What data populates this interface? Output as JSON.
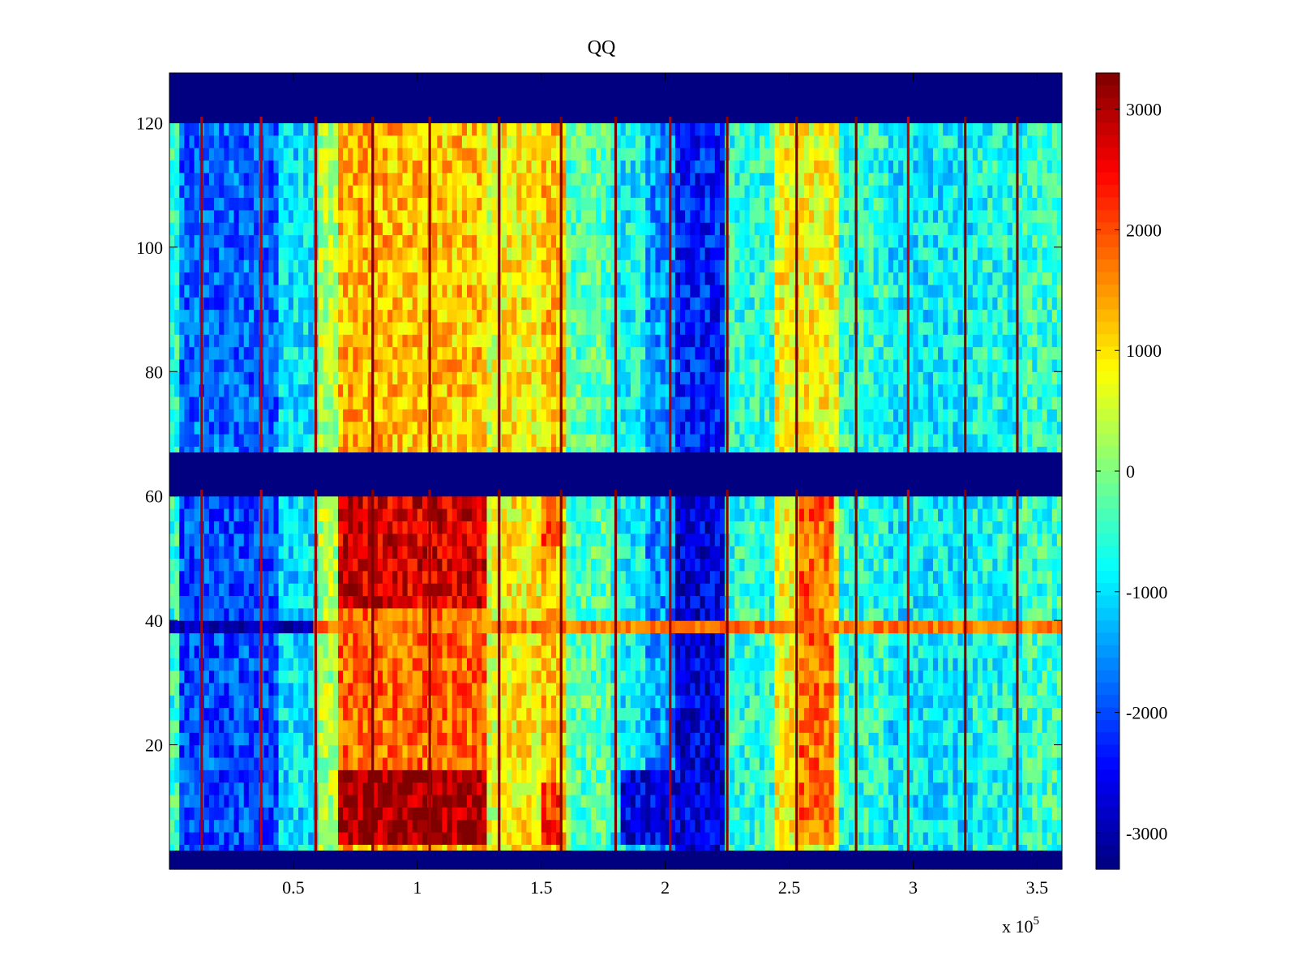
{
  "chart_data": {
    "type": "heatmap",
    "title": "QQ",
    "xlabel": "",
    "ylabel": "",
    "colormap": "jet",
    "xlim": [
      0,
      360000
    ],
    "ylim": [
      0,
      128
    ],
    "x_scale_label": "x 10",
    "x_scale_exponent": "5",
    "x_ticks": [
      {
        "value": 50000,
        "label": "0.5"
      },
      {
        "value": 100000,
        "label": "1"
      },
      {
        "value": 150000,
        "label": "1.5"
      },
      {
        "value": 200000,
        "label": "2"
      },
      {
        "value": 250000,
        "label": "2.5"
      },
      {
        "value": 300000,
        "label": "3"
      },
      {
        "value": 350000,
        "label": "3.5"
      }
    ],
    "y_ticks": [
      {
        "value": 20,
        "label": "20"
      },
      {
        "value": 40,
        "label": "40"
      },
      {
        "value": 60,
        "label": "60"
      },
      {
        "value": 80,
        "label": "80"
      },
      {
        "value": 100,
        "label": "100"
      },
      {
        "value": 120,
        "label": "120"
      }
    ],
    "colorbar": {
      "range": [
        -3300,
        3300
      ],
      "ticks": [
        {
          "value": 3000,
          "label": "3000"
        },
        {
          "value": 2000,
          "label": "2000"
        },
        {
          "value": 1000,
          "label": "1000"
        },
        {
          "value": 0,
          "label": "0"
        },
        {
          "value": -1000,
          "label": "-1000"
        },
        {
          "value": -2000,
          "label": "-2000"
        },
        {
          "value": -3000,
          "label": "-3000"
        }
      ]
    },
    "masked_row_bands": [
      {
        "y": [
          0,
          3
        ],
        "value": -3300
      },
      {
        "y": [
          61,
          67
        ],
        "value": -3300
      },
      {
        "y": [
          121,
          128
        ],
        "value": -3300
      }
    ],
    "column_base_values": [
      {
        "x": [
          0,
          5000
        ],
        "value": -500
      },
      {
        "x": [
          5000,
          45000
        ],
        "value": -1800
      },
      {
        "x": [
          45000,
          60000
        ],
        "value": -1000
      },
      {
        "x": [
          60000,
          68000
        ],
        "value": 300
      },
      {
        "x": [
          68000,
          90000
        ],
        "value": 1300
      },
      {
        "x": [
          90000,
          128000
        ],
        "value": 1200
      },
      {
        "x": [
          128000,
          135000
        ],
        "value": 600
      },
      {
        "x": [
          135000,
          150000
        ],
        "value": 900
      },
      {
        "x": [
          150000,
          160000
        ],
        "value": 1200
      },
      {
        "x": [
          160000,
          178000
        ],
        "value": -300
      },
      {
        "x": [
          178000,
          193000
        ],
        "value": -800
      },
      {
        "x": [
          193000,
          205000
        ],
        "value": -1500
      },
      {
        "x": [
          205000,
          225000
        ],
        "value": -2300
      },
      {
        "x": [
          225000,
          245000
        ],
        "value": -600
      },
      {
        "x": [
          245000,
          270000
        ],
        "value": 800
      },
      {
        "x": [
          270000,
          290000
        ],
        "value": -600
      },
      {
        "x": [
          290000,
          325000
        ],
        "value": -900
      },
      {
        "x": [
          325000,
          345000
        ],
        "value": -700
      },
      {
        "x": [
          345000,
          360000
        ],
        "value": -500
      }
    ],
    "row_value_offsets": [
      {
        "y": [
          3,
          61
        ],
        "offset": 0
      },
      {
        "y": [
          67,
          121
        ],
        "offset": 0
      }
    ],
    "hot_regions": [
      {
        "x": [
          68000,
          128000
        ],
        "y": [
          5,
          17
        ],
        "value": 3100
      },
      {
        "x": [
          68000,
          128000
        ],
        "y": [
          42,
          61
        ],
        "value": 2700
      },
      {
        "x": [
          68000,
          128000
        ],
        "y": [
          17,
          42
        ],
        "value": 1800
      },
      {
        "x": [
          150000,
          158000
        ],
        "y": [
          5,
          14
        ],
        "value": 2200
      },
      {
        "x": [
          150000,
          158000
        ],
        "y": [
          52,
          61
        ],
        "value": 1900
      },
      {
        "x": [
          255000,
          268000
        ],
        "y": [
          5,
          61
        ],
        "value": 1800
      }
    ],
    "cold_regions": [
      {
        "x": [
          5000,
          45000
        ],
        "y": [
          3,
          61
        ],
        "value": -2000
      },
      {
        "x": [
          183000,
          225000
        ],
        "y": [
          5,
          17
        ],
        "value": -2600
      },
      {
        "x": [
          205000,
          225000
        ],
        "y": [
          3,
          61
        ],
        "value": -2700
      }
    ],
    "row_line": {
      "y": [
        38,
        39.5
      ],
      "segments": [
        {
          "x": [
            0,
            59000
          ],
          "value": -3000
        },
        {
          "x": [
            59000,
            360000
          ],
          "value": 1700
        }
      ]
    },
    "vertical_lines": [
      {
        "x": 13000,
        "value": 3000
      },
      {
        "x": 37000,
        "value": 2800
      },
      {
        "x": 59000,
        "value": 3100
      },
      {
        "x": 82000,
        "value": 3300
      },
      {
        "x": 105000,
        "value": 3100
      },
      {
        "x": 133000,
        "value": 3300
      },
      {
        "x": 158000,
        "value": 3300
      },
      {
        "x": 180000,
        "value": 3300
      },
      {
        "x": 202000,
        "value": 3000
      },
      {
        "x": 225000,
        "value": 3200
      },
      {
        "x": 253000,
        "value": 3300
      },
      {
        "x": 277000,
        "value": 3300
      },
      {
        "x": 298000,
        "value": 2800
      },
      {
        "x": 321000,
        "value": 3300
      },
      {
        "x": 342000,
        "value": 3300
      }
    ]
  }
}
